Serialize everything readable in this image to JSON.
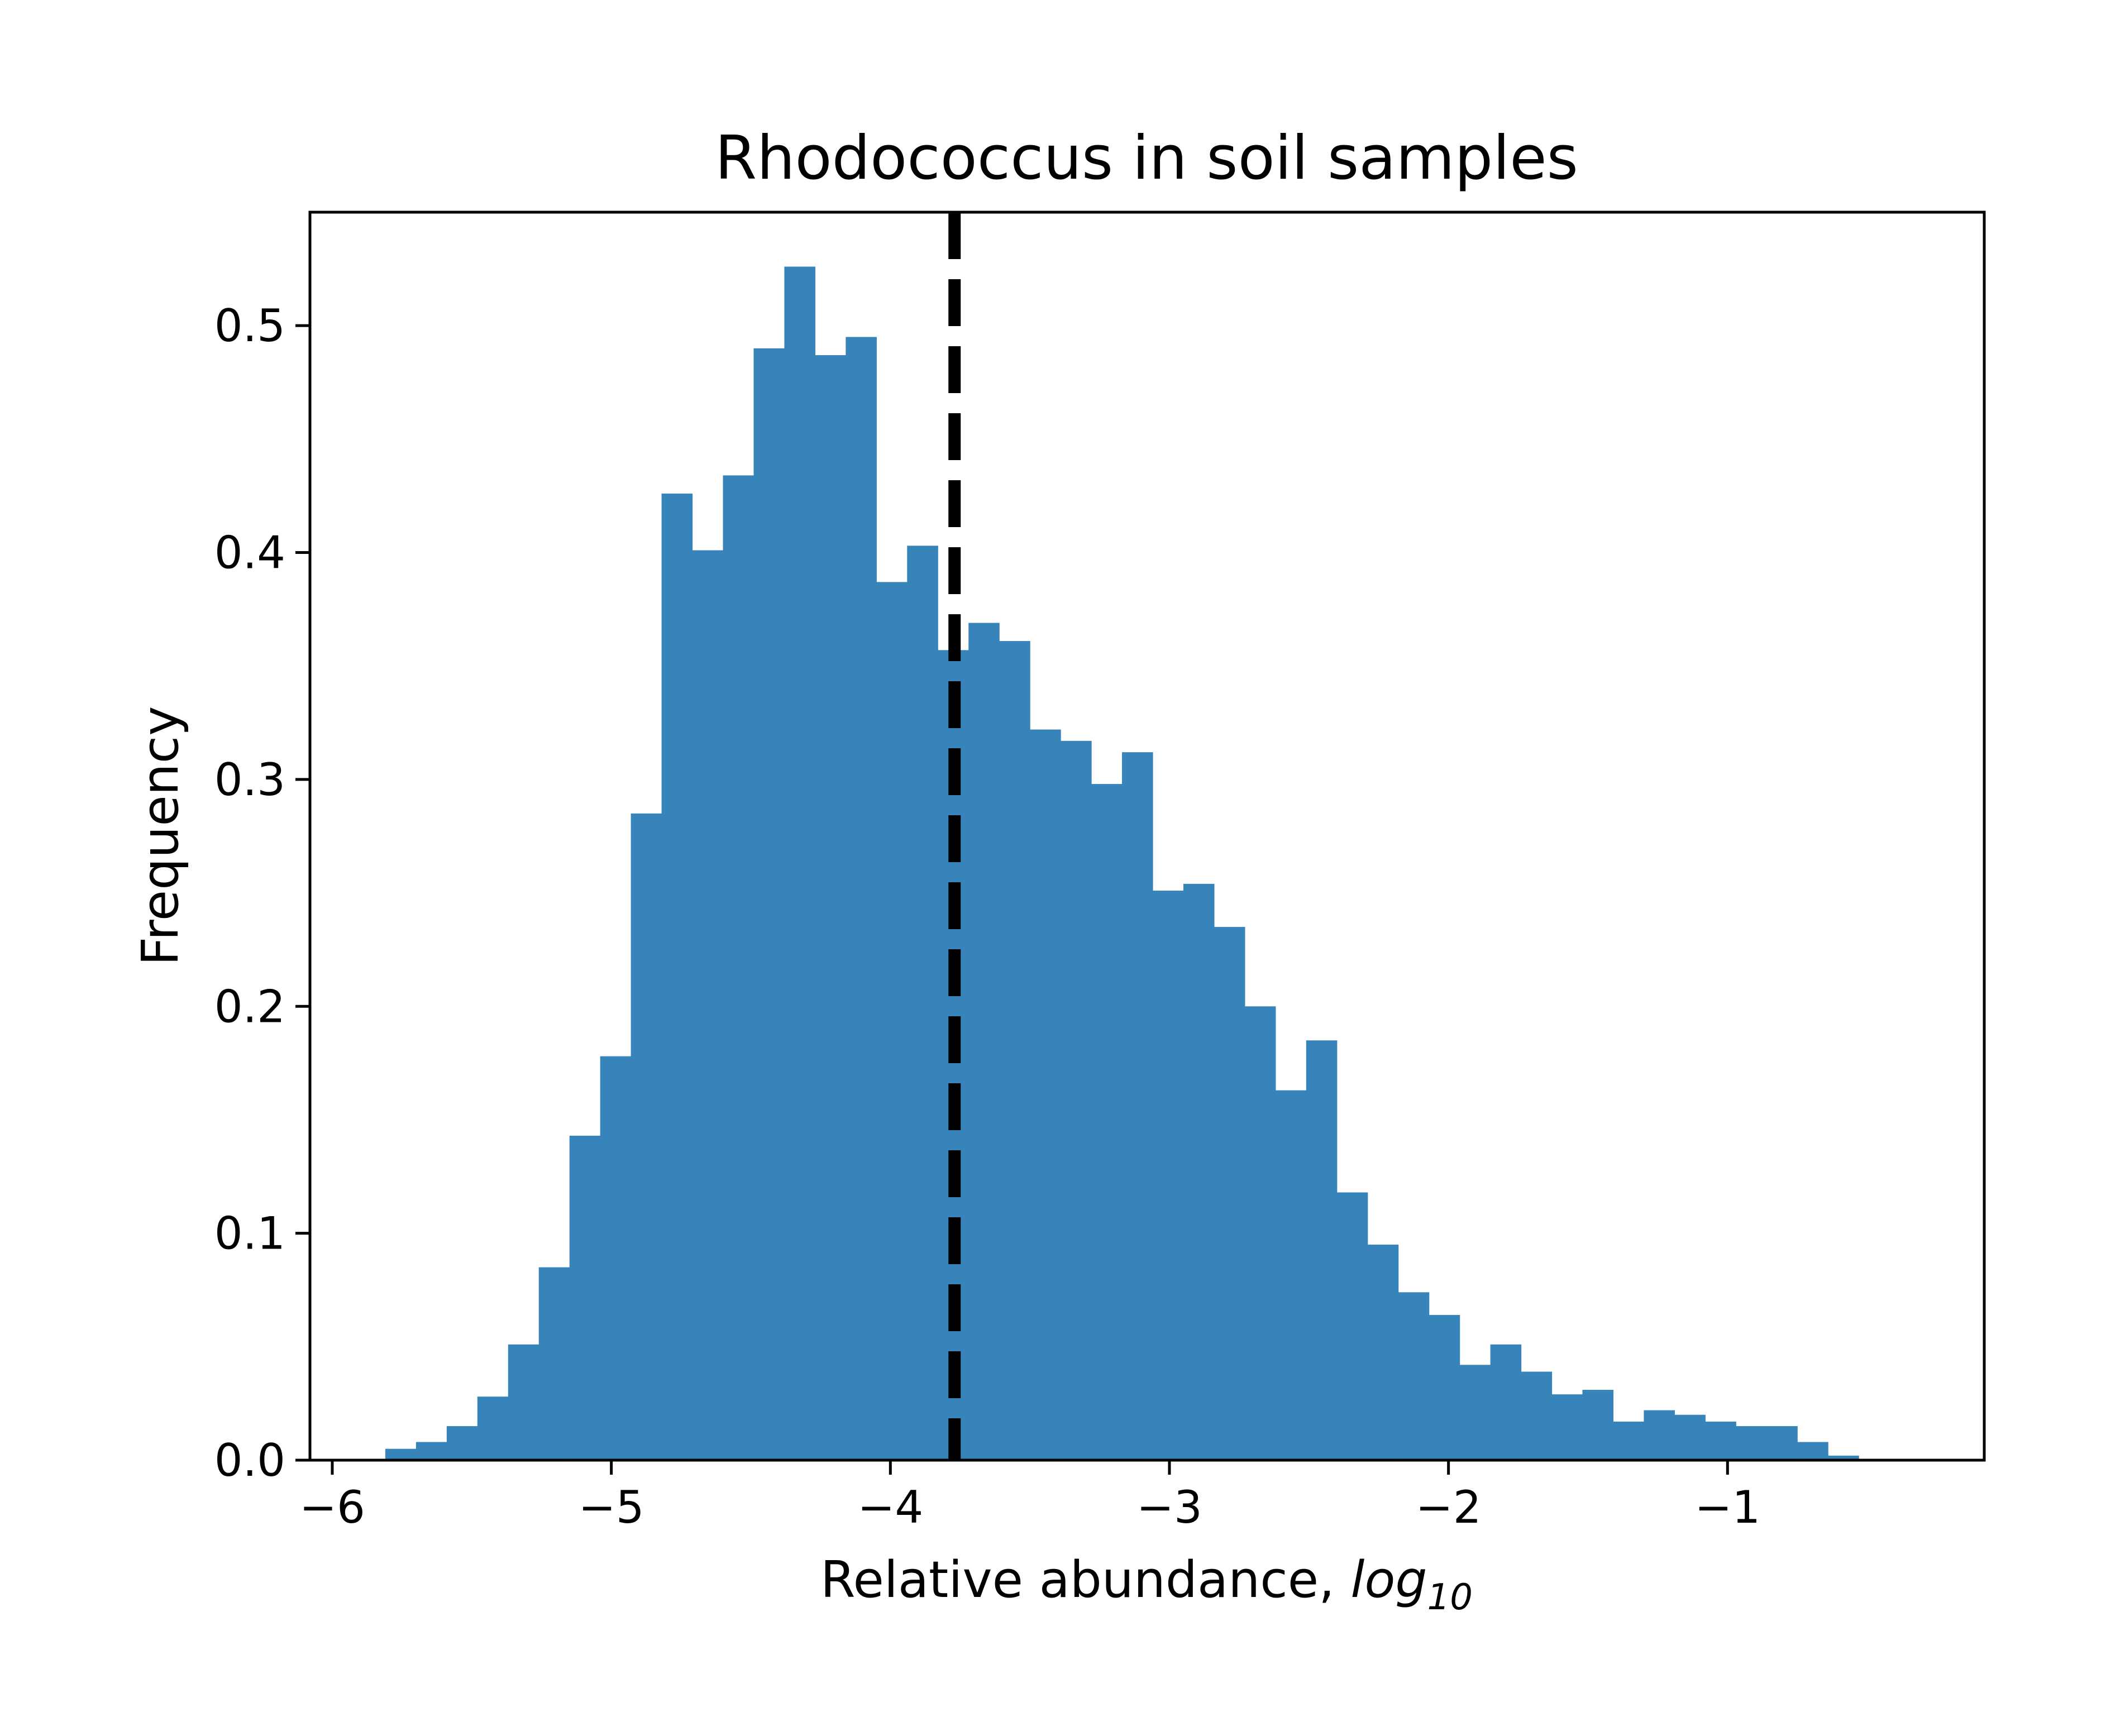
{
  "chart_data": {
    "type": "bar",
    "title": "Rhodococcus in soil samples",
    "xlabel": "Relative abundance, ",
    "xlabel_italic": "log",
    "xlabel_sub": "10",
    "ylabel": "Frequency",
    "xlim": [
      -6.08,
      -0.08
    ],
    "ylim": [
      0,
      0.55
    ],
    "x_ticks": [
      -6,
      -5,
      -4,
      -3,
      -2,
      -1
    ],
    "x_tick_labels": [
      "−6",
      "−5",
      "−4",
      "−3",
      "−2",
      "−1"
    ],
    "y_ticks": [
      0.0,
      0.1,
      0.2,
      0.3,
      0.4,
      0.5
    ],
    "y_tick_labels": [
      "0.0",
      "0.1",
      "0.2",
      "0.3",
      "0.4",
      "0.5"
    ],
    "bin_edges": [
      -5.81,
      -5.7,
      -5.59,
      -5.48,
      -5.37,
      -5.26,
      -5.15,
      -5.04,
      -4.93,
      -4.82,
      -4.71,
      -4.6,
      -4.49,
      -4.38,
      -4.27,
      -4.16,
      -4.05,
      -3.94,
      -3.83,
      -3.72,
      -3.61,
      -3.5,
      -3.39,
      -3.28,
      -3.17,
      -3.06,
      -2.95,
      -2.84,
      -2.73,
      -2.62,
      -2.51,
      -2.4,
      -2.29,
      -2.18,
      -2.07,
      -1.96,
      -1.85,
      -1.74,
      -1.63,
      -1.52,
      -1.41,
      -1.3,
      -1.19,
      -1.08,
      -0.97,
      -0.86,
      -0.75,
      -0.64,
      -0.53
    ],
    "values": [
      0.005,
      0.008,
      0.015,
      0.028,
      0.051,
      0.085,
      0.143,
      0.178,
      0.285,
      0.426,
      0.401,
      0.434,
      0.49,
      0.526,
      0.487,
      0.495,
      0.387,
      0.403,
      0.357,
      0.369,
      0.361,
      0.322,
      0.317,
      0.298,
      0.312,
      0.251,
      0.254,
      0.235,
      0.2,
      0.163,
      0.185,
      0.118,
      0.095,
      0.074,
      0.064,
      0.042,
      0.051,
      0.039,
      0.029,
      0.031,
      0.017,
      0.022,
      0.02,
      0.017,
      0.015,
      0.015,
      0.008,
      0.002
    ],
    "bar_color": "#3784bb",
    "reference_line": {
      "x": -3.77,
      "style": "dashed",
      "color": "#000000"
    },
    "grid": false
  }
}
